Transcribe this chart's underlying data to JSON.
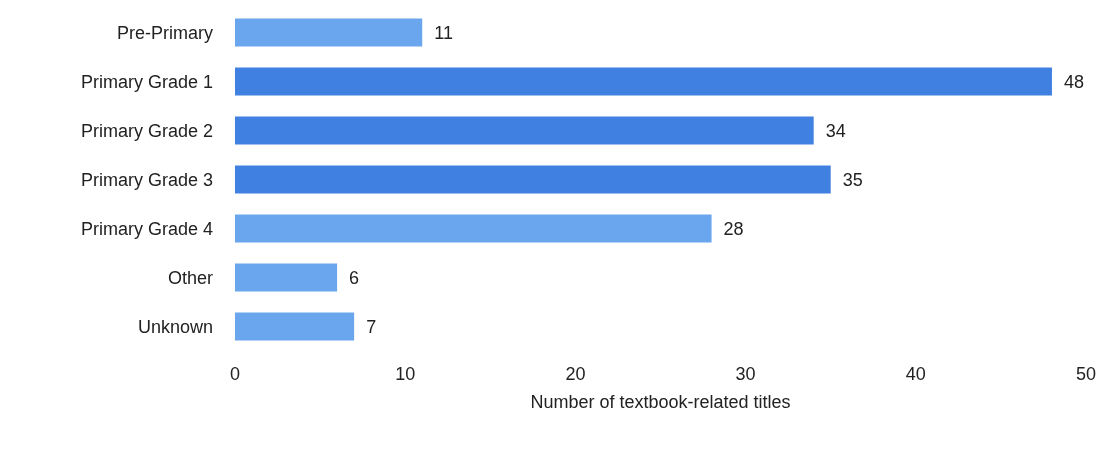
{
  "chart_data": {
    "type": "bar",
    "orientation": "horizontal",
    "xlabel": "Number of textbook-related titles",
    "categories": [
      "Pre-Primary",
      "Primary Grade 1",
      "Primary Grade 2",
      "Primary Grade 3",
      "Primary Grade 4",
      "Other",
      "Unknown"
    ],
    "values": [
      11,
      48,
      34,
      35,
      28,
      6,
      7
    ],
    "colors": [
      "#6aa6ee",
      "#3f80e0",
      "#3f80e0",
      "#3f80e0",
      "#6aa6ee",
      "#6aa6ee",
      "#6aa6ee"
    ],
    "xlim": [
      0,
      50
    ],
    "xticks": [
      0,
      10,
      20,
      30,
      40,
      50
    ],
    "grid": false,
    "data_labels": true
  }
}
